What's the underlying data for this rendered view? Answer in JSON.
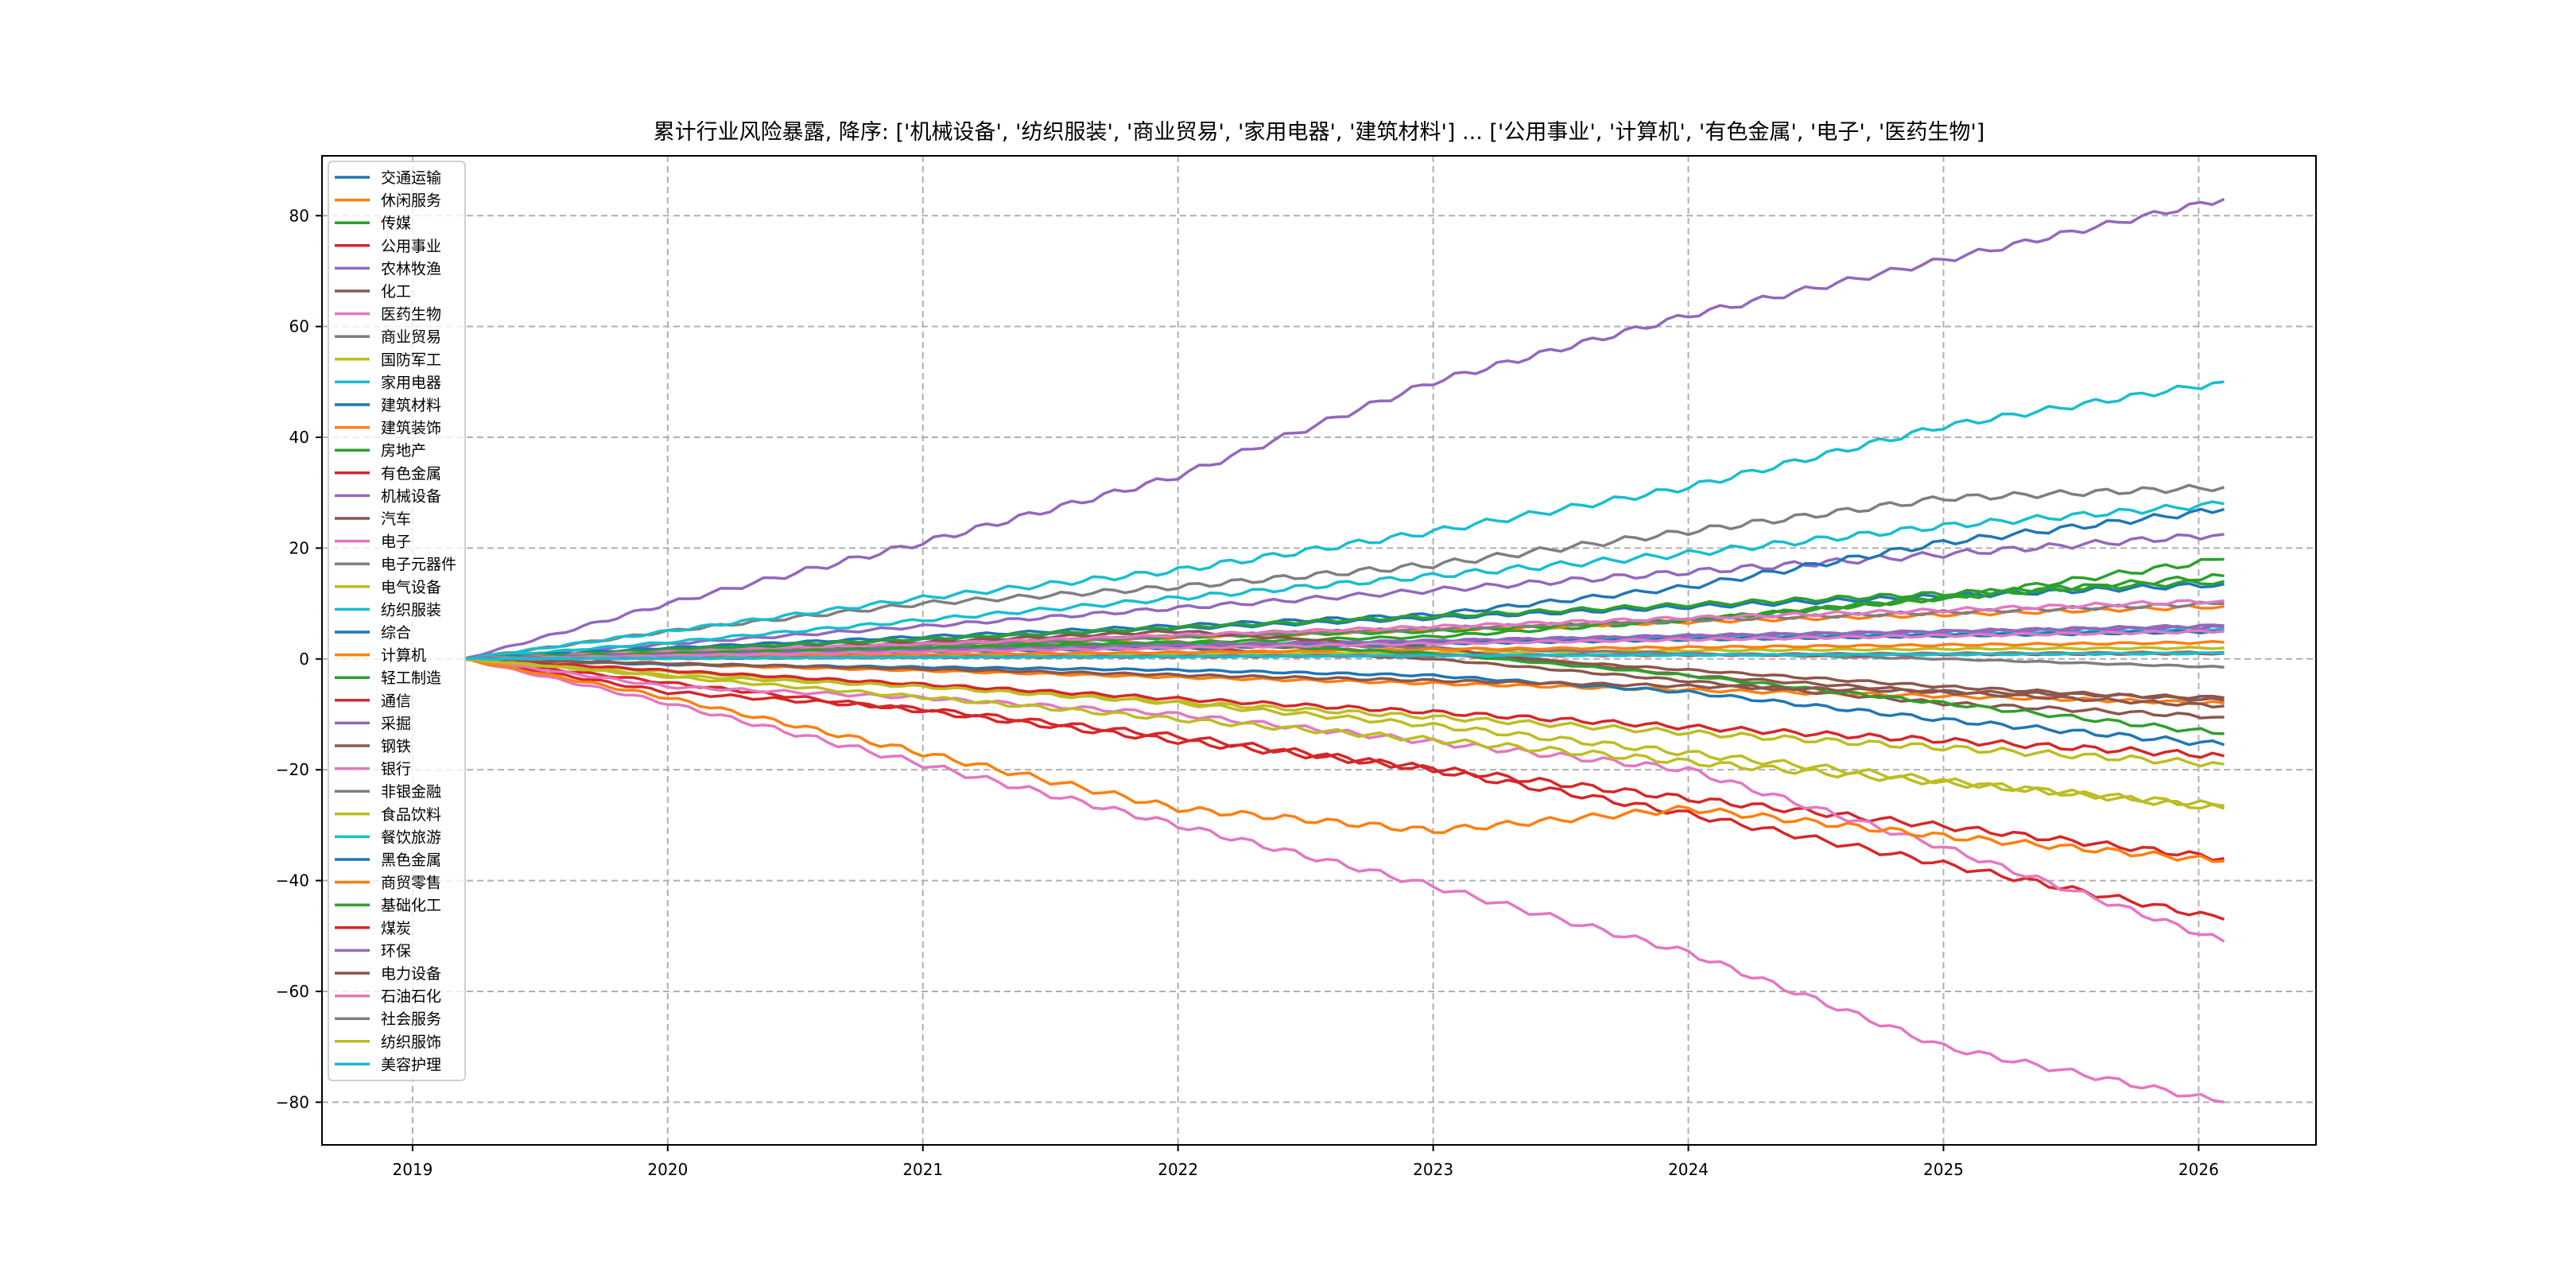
{
  "chart_data": {
    "type": "line",
    "title": "累计行业风险暴露, 降序: ['机械设备', '纺织服装', '商业贸易', '家用电器', '建筑材料'] ... ['公用事业', '计算机', '有色金属', '电子', '医药生物']",
    "xlabel": "",
    "ylabel": "",
    "xlim": [
      2018.645,
      2026.46
    ],
    "ylim": [
      -87.7,
      90.8
    ],
    "xticks": [
      2019,
      2020,
      2021,
      2022,
      2023,
      2024,
      2025,
      2026
    ],
    "xtick_labels": [
      "2019",
      "2020",
      "2021",
      "2022",
      "2023",
      "2024",
      "2025",
      "2026"
    ],
    "yticks": [
      -80,
      -60,
      -40,
      -20,
      0,
      20,
      40,
      60,
      80
    ],
    "ytick_labels": [
      "−80",
      "−60",
      "−40",
      "−20",
      "0",
      "20",
      "40",
      "60",
      "80"
    ],
    "grid": true,
    "legend_position": "upper-left",
    "x": [
      2019.2,
      2020,
      2021,
      2022,
      2023,
      2024,
      2025,
      2026.1
    ],
    "series": [
      {
        "name": "交通运输",
        "color": "#1f77b4",
        "values": [
          0,
          1.6,
          3.5,
          5.5,
          7.4,
          9.4,
          11.3,
          13.5
        ]
      },
      {
        "name": "休闲服务",
        "color": "#ff7f0e",
        "values": [
          0,
          -1,
          -2.1,
          -3.3,
          -4.4,
          -5.6,
          -6.7,
          -8
        ]
      },
      {
        "name": "传媒",
        "color": "#2ca02c",
        "values": [
          0,
          1,
          2,
          3,
          4,
          7,
          11,
          18
        ]
      },
      {
        "name": "公用事业",
        "color": "#d62728",
        "values": [
          0,
          -4.3,
          -9.4,
          -14.8,
          -19.8,
          -25.2,
          -30.2,
          -36
        ]
      },
      {
        "name": "农林牧渔",
        "color": "#9467bd",
        "values": [
          0,
          2.7,
          5.9,
          9.2,
          12.4,
          15.7,
          18.9,
          22.5
        ]
      },
      {
        "name": "化工",
        "color": "#8c564b",
        "values": [
          0,
          1,
          2,
          3,
          1,
          -2,
          -5,
          -7.5
        ]
      },
      {
        "name": "医药生物",
        "color": "#e377c2",
        "values": [
          0,
          -8,
          -19,
          -30,
          -41,
          -53,
          -70,
          -80
        ]
      },
      {
        "name": "商业贸易",
        "color": "#7f7f7f",
        "values": [
          0,
          5,
          10,
          13,
          17,
          23,
          29,
          31
        ]
      },
      {
        "name": "国防军工",
        "color": "#bcbd22",
        "values": [
          0,
          -2.3,
          -4.9,
          -7.8,
          -10.5,
          -13.3,
          -16,
          -19
        ]
      },
      {
        "name": "家用电器",
        "color": "#17becf",
        "values": [
          0,
          3,
          7,
          11,
          15,
          19,
          24,
          28
        ]
      },
      {
        "name": "建筑材料",
        "color": "#1f77b4",
        "values": [
          0,
          2,
          4,
          6,
          8,
          13,
          21,
          27
        ]
      },
      {
        "name": "建筑装饰",
        "color": "#ff7f0e",
        "values": [
          0,
          1.1,
          2.5,
          3.9,
          5.2,
          6.7,
          8,
          9.5
        ]
      },
      {
        "name": "房地产",
        "color": "#2ca02c",
        "values": [
          0,
          1,
          2,
          4,
          5,
          7,
          11,
          15
        ]
      },
      {
        "name": "有色金属",
        "color": "#d62728",
        "values": [
          0,
          -6,
          -9,
          -14,
          -20,
          -28,
          -37,
          -47
        ]
      },
      {
        "name": "机械设备",
        "color": "#9467bd",
        "values": [
          0,
          10,
          21,
          33,
          50,
          62,
          72,
          83
        ]
      },
      {
        "name": "汽车",
        "color": "#8c564b",
        "values": [
          0,
          1,
          2,
          2,
          0,
          -4,
          -8,
          -10.5
        ]
      },
      {
        "name": "电子",
        "color": "#e377c2",
        "values": [
          0,
          -5,
          -7,
          -10,
          -15,
          -20,
          -34,
          -51
        ]
      },
      {
        "name": "电子元器件",
        "color": "#7f7f7f",
        "values": [
          0,
          1.2,
          2.6,
          4.1,
          5.5,
          7,
          8.4,
          10
        ]
      },
      {
        "name": "电气设备",
        "color": "#bcbd22",
        "values": [
          0,
          0.3,
          0.6,
          0.9,
          1.2,
          1.5,
          1.8,
          2
        ]
      },
      {
        "name": "纺织服装",
        "color": "#17becf",
        "values": [
          0,
          5,
          11,
          16,
          23,
          31,
          42,
          50
        ]
      },
      {
        "name": "综合",
        "color": "#1f77b4",
        "values": [
          0,
          -1,
          -1.5,
          -2,
          -3,
          -6,
          -11,
          -15.5
        ]
      },
      {
        "name": "计算机",
        "color": "#ff7f0e",
        "values": [
          0,
          -7,
          -17,
          -27,
          -31,
          -27,
          -32,
          -36.5
        ]
      },
      {
        "name": "轻工制造",
        "color": "#2ca02c",
        "values": [
          0,
          1.7,
          3.6,
          5.7,
          7.7,
          9.8,
          11.8,
          14
        ]
      },
      {
        "name": "通信",
        "color": "#d62728",
        "values": [
          0,
          -2.1,
          -4.6,
          -7.2,
          -9.6,
          -12.3,
          -14.7,
          -17.5
        ]
      },
      {
        "name": "采掘",
        "color": "#9467bd",
        "values": [
          0,
          0.7,
          1.6,
          2.5,
          3.3,
          4.2,
          5,
          6
        ]
      },
      {
        "name": "钢铁",
        "color": "#8c564b",
        "values": [
          0,
          1,
          3,
          5,
          2,
          -3,
          -6,
          -8.5
        ]
      },
      {
        "name": "银行",
        "color": "#e377c2",
        "values": [
          0,
          1.3,
          2.7,
          4.3,
          5.8,
          7.4,
          8.8,
          10.5
        ]
      },
      {
        "name": "非银金融",
        "color": "#7f7f7f",
        "values": [
          0,
          1,
          2,
          3,
          2,
          1,
          0,
          -1.5
        ]
      },
      {
        "name": "食品饮料",
        "color": "#bcbd22",
        "values": [
          0,
          -3.2,
          -6.9,
          -10.9,
          -14.6,
          -18.6,
          -22.3,
          -26.5
        ]
      },
      {
        "name": "餐饮旅游",
        "color": "#17becf",
        "values": [
          0,
          0.7,
          1.4,
          2.3,
          3,
          3.9,
          4.6,
          5.5
        ]
      },
      {
        "name": "黑色金属",
        "color": "#1f77b4",
        "values": [
          0,
          0.6,
          1.3,
          2,
          2.8,
          3.5,
          4.2,
          5
        ]
      },
      {
        "name": "商贸零售",
        "color": "#ff7f0e",
        "values": [
          0,
          0.4,
          0.8,
          1.2,
          1.7,
          2.1,
          2.5,
          3
        ]
      },
      {
        "name": "基础化工",
        "color": "#2ca02c",
        "values": [
          0,
          1,
          2,
          3,
          1,
          -3,
          -8,
          -13.5
        ]
      },
      {
        "name": "煤炭",
        "color": "#d62728",
        "values": [
          0,
          0.1,
          0.3,
          0.4,
          0.6,
          0.7,
          0.8,
          1
        ]
      },
      {
        "name": "环保",
        "color": "#9467bd",
        "values": [
          0,
          0.7,
          1.5,
          2.4,
          3.2,
          4.1,
          4.9,
          5.8
        ]
      },
      {
        "name": "电力设备",
        "color": "#8c564b",
        "values": [
          0,
          -0.8,
          -1.8,
          -2.9,
          -3.9,
          -4.9,
          -5.9,
          -7
        ]
      },
      {
        "name": "石油石化",
        "color": "#e377c2",
        "values": [
          0,
          0.6,
          1.3,
          2,
          2.8,
          3.5,
          4.2,
          5
        ]
      },
      {
        "name": "社会服务",
        "color": "#7f7f7f",
        "values": [
          0,
          0.1,
          0.3,
          0.5,
          0.7,
          0.8,
          1,
          1.2
        ]
      },
      {
        "name": "纺织服饰",
        "color": "#bcbd22",
        "values": [
          0,
          -3,
          -5,
          -8,
          -12,
          -17,
          -22,
          -27
        ]
      },
      {
        "name": "美容护理",
        "color": "#17becf",
        "values": [
          0,
          0.1,
          0.3,
          0.4,
          0.6,
          0.7,
          0.8,
          1
        ]
      }
    ]
  }
}
